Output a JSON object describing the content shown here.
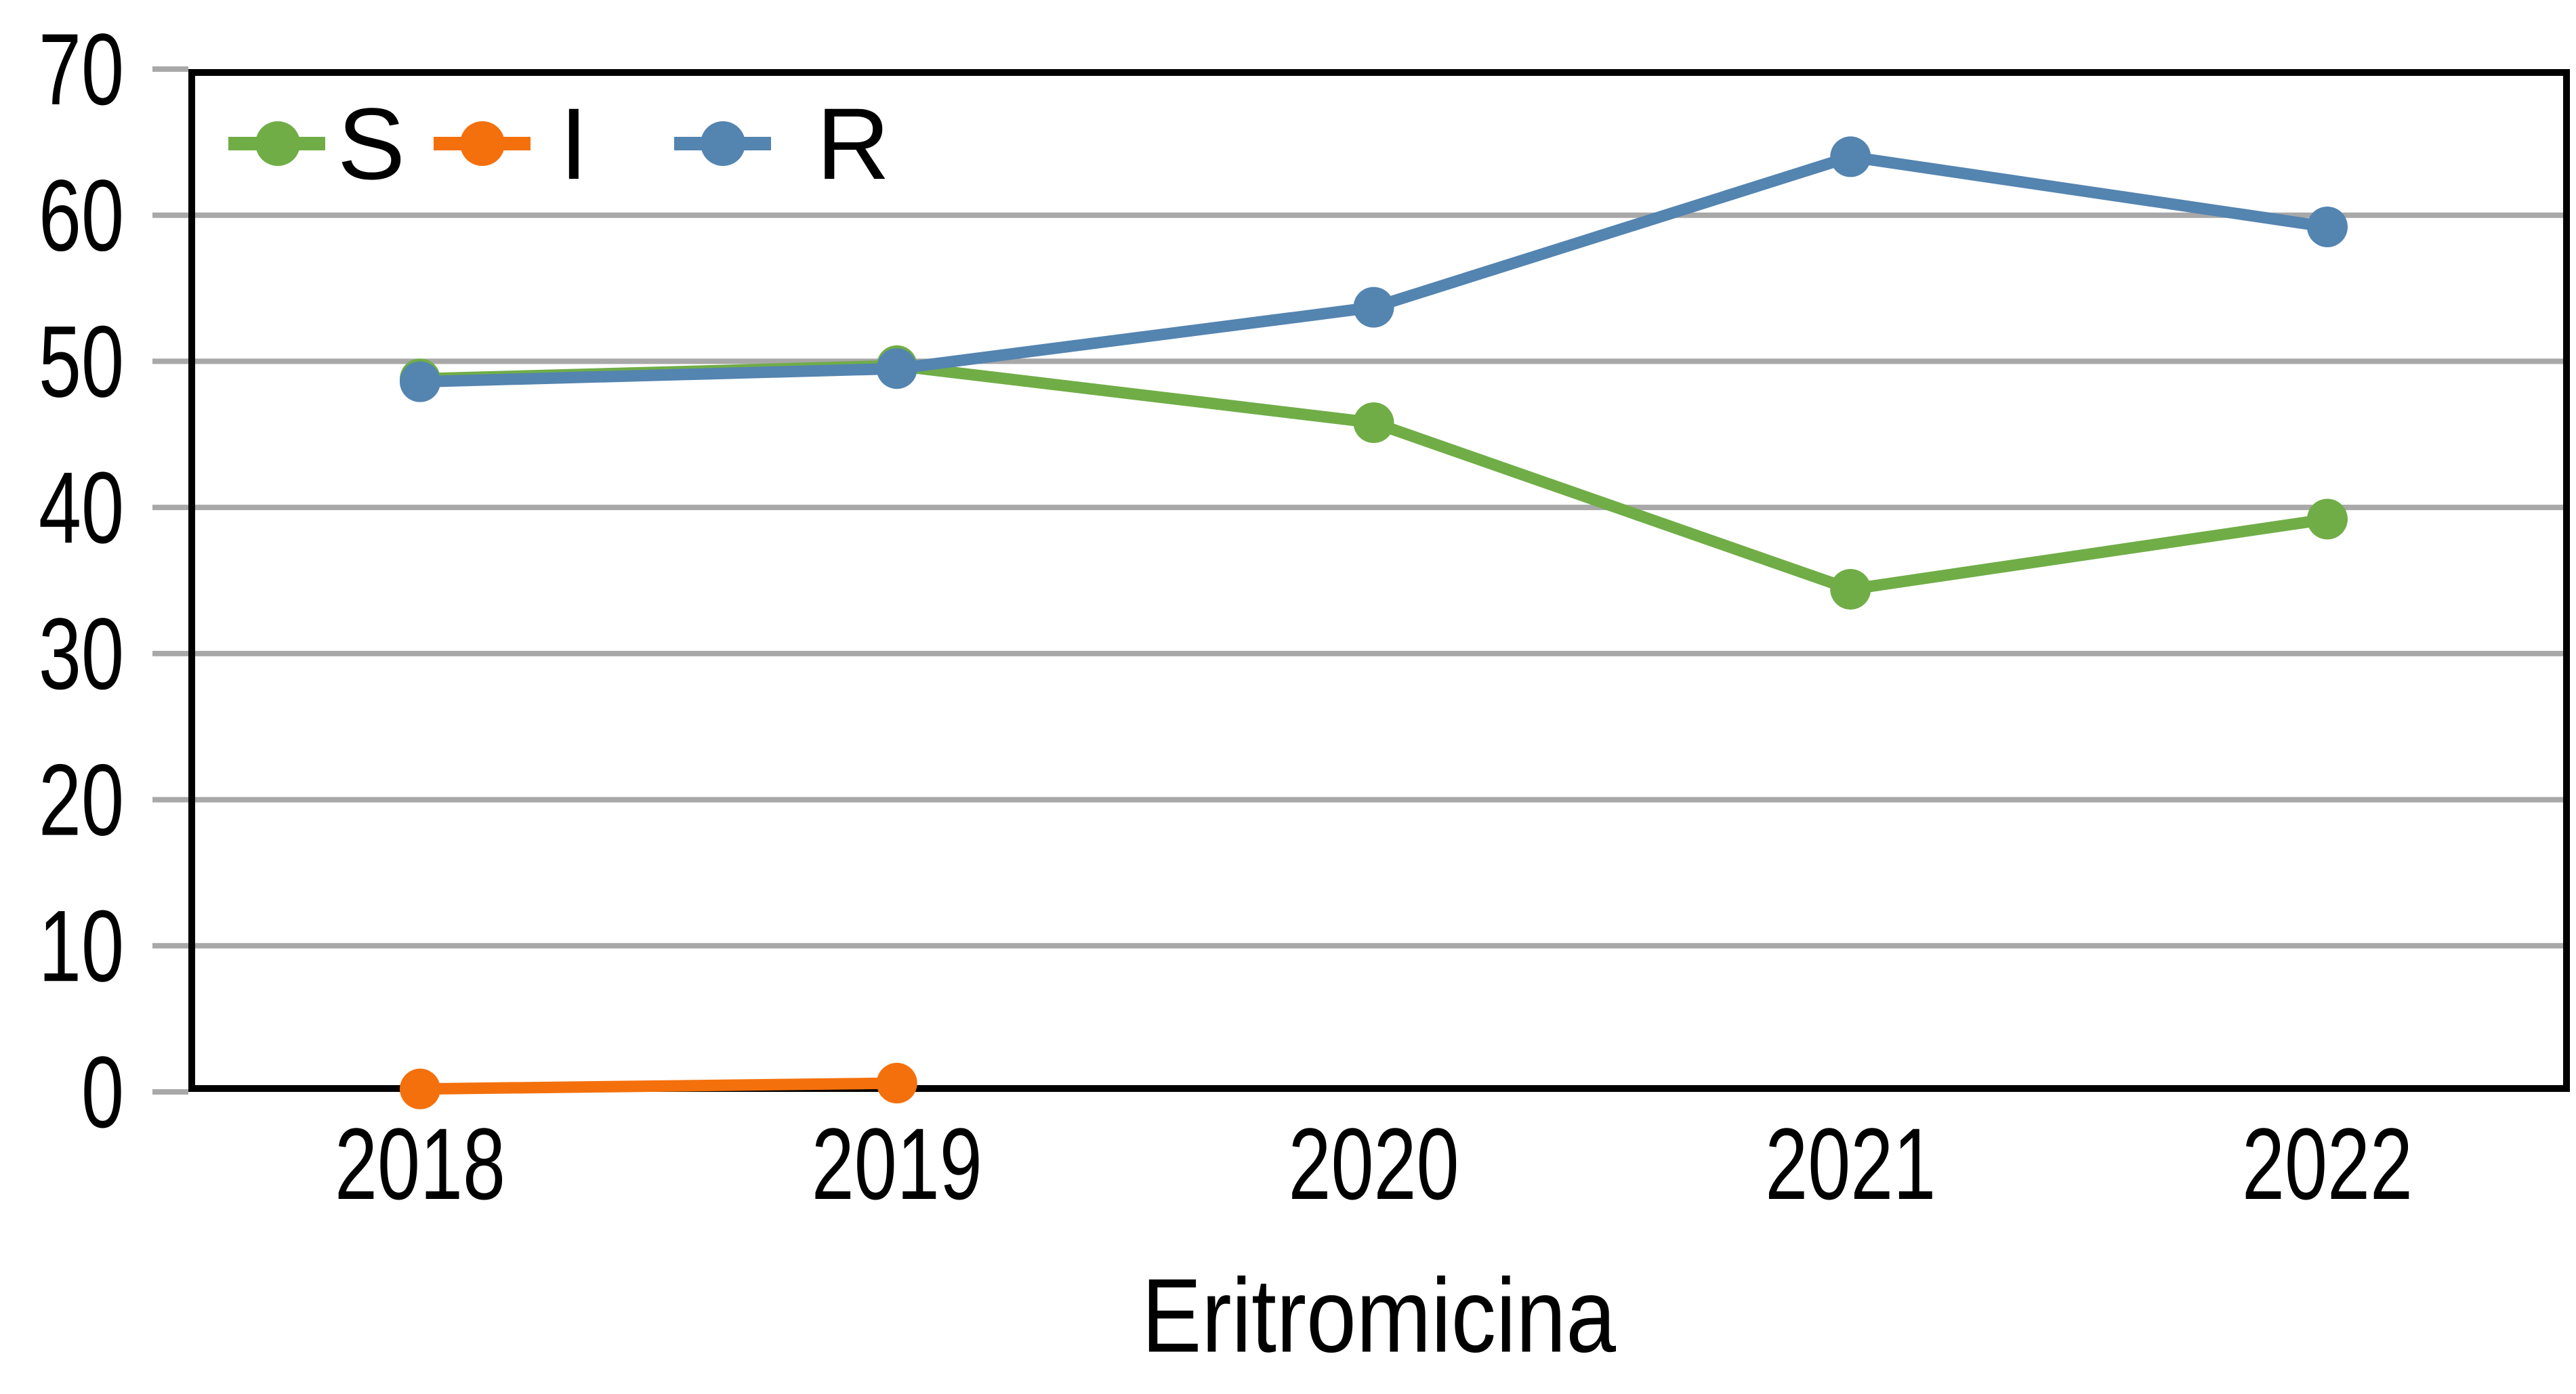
{
  "chart_data": {
    "type": "line",
    "x_categories": [
      "2018",
      "2019",
      "2020",
      "2021",
      "2022"
    ],
    "series": [
      {
        "name": "S",
        "color": "#70ad47",
        "values": [
          48.8,
          49.7,
          45.8,
          34.4,
          39.2
        ]
      },
      {
        "name": "I",
        "color": "#f4700c",
        "values": [
          0.2,
          0.6,
          null,
          null,
          null
        ]
      },
      {
        "name": "R",
        "color": "#5484b0",
        "values": [
          48.6,
          49.5,
          53.7,
          64.0,
          59.2
        ]
      }
    ],
    "xlabel": "Eritromicina",
    "ylabel": "",
    "ylim": [
      0,
      70
    ],
    "yticks": [
      0,
      10,
      20,
      30,
      40,
      50,
      60,
      70
    ],
    "grid": "horizontal",
    "legend_position": "top-left-inside",
    "colors": {
      "grid": "#a8a8a8",
      "tick": "#a8a8a8",
      "axis_box": "#000000",
      "text": "#000000",
      "background": "#ffffff"
    }
  }
}
